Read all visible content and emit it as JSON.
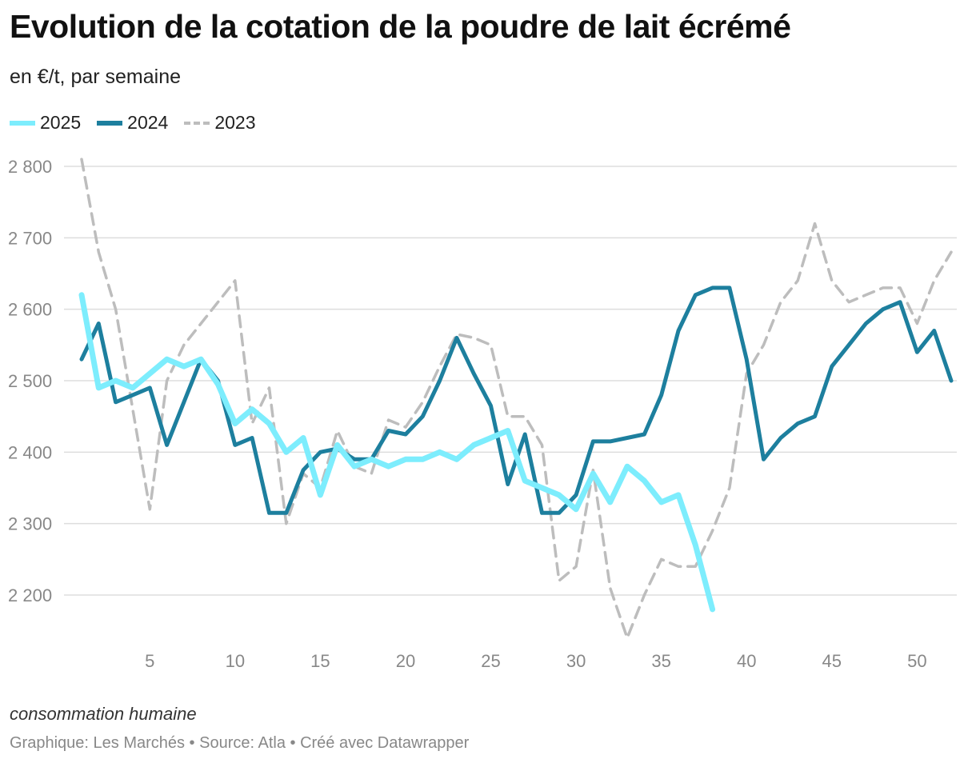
{
  "chart_data": {
    "type": "line",
    "title": "Evolution de la cotation de la poudre de lait écrémé",
    "subtitle": "en €/t, par semaine",
    "xlabel": "",
    "ylabel": "",
    "xlim": [
      1,
      52
    ],
    "ylim": [
      2140,
      2820
    ],
    "x_ticks": [
      5,
      10,
      15,
      20,
      25,
      30,
      35,
      40,
      45,
      50
    ],
    "y_ticks": [
      2200,
      2300,
      2400,
      2500,
      2600,
      2700,
      2800
    ],
    "y_tick_labels": [
      "2 200",
      "2 300",
      "2 400",
      "2 500",
      "2 600",
      "2 700",
      "2 800"
    ],
    "grid": "horizontal",
    "legend_position": "top-left",
    "series": [
      {
        "name": "2025",
        "color": "#7dedfd",
        "style": "solid",
        "x": [
          1,
          2,
          3,
          4,
          5,
          6,
          7,
          8,
          9,
          10,
          11,
          12,
          13,
          14,
          15,
          16,
          17,
          18,
          19,
          20,
          21,
          22,
          23,
          24,
          25,
          26,
          27,
          28,
          29,
          30,
          31,
          32,
          33,
          34,
          35,
          36,
          37,
          38
        ],
        "values": [
          2620,
          2490,
          2500,
          2490,
          2510,
          2530,
          2520,
          2530,
          2495,
          2440,
          2460,
          2440,
          2400,
          2420,
          2340,
          2410,
          2380,
          2390,
          2380,
          2390,
          2390,
          2400,
          2390,
          2410,
          2420,
          2430,
          2360,
          2350,
          2340,
          2320,
          2370,
          2330,
          2380,
          2360,
          2330,
          2340,
          2270,
          2180
        ]
      },
      {
        "name": "2024",
        "color": "#1d7f9e",
        "style": "solid",
        "x": [
          1,
          2,
          3,
          4,
          5,
          6,
          7,
          8,
          9,
          10,
          11,
          12,
          13,
          14,
          15,
          16,
          17,
          18,
          19,
          20,
          21,
          22,
          23,
          24,
          25,
          26,
          27,
          28,
          29,
          30,
          31,
          32,
          33,
          34,
          35,
          36,
          37,
          38,
          39,
          40,
          41,
          42,
          43,
          44,
          45,
          46,
          47,
          48,
          49,
          50,
          51,
          52
        ],
        "values": [
          2530,
          2580,
          2470,
          2480,
          2490,
          2410,
          2470,
          2530,
          2500,
          2410,
          2420,
          2315,
          2315,
          2375,
          2400,
          2405,
          2390,
          2390,
          2430,
          2425,
          2450,
          2500,
          2560,
          2510,
          2465,
          2355,
          2425,
          2315,
          2315,
          2340,
          2415,
          2415,
          2420,
          2425,
          2480,
          2570,
          2620,
          2630,
          2630,
          2530,
          2390,
          2420,
          2440,
          2450,
          2520,
          2550,
          2580,
          2600,
          2610,
          2540,
          2570,
          2500
        ]
      },
      {
        "name": "2023",
        "color": "#bdbdbd",
        "style": "dashed",
        "x": [
          1,
          2,
          3,
          4,
          5,
          6,
          7,
          8,
          9,
          10,
          11,
          12,
          13,
          14,
          15,
          16,
          17,
          18,
          19,
          20,
          21,
          22,
          23,
          24,
          25,
          26,
          27,
          28,
          29,
          30,
          31,
          32,
          33,
          34,
          35,
          36,
          37,
          38,
          39,
          40,
          41,
          42,
          43,
          44,
          45,
          46,
          47,
          48,
          49,
          50,
          51,
          52
        ],
        "values": [
          2810,
          2680,
          2600,
          2460,
          2320,
          2500,
          2550,
          2580,
          2610,
          2640,
          2440,
          2490,
          2300,
          2370,
          2350,
          2430,
          2380,
          2370,
          2445,
          2435,
          2470,
          2520,
          2565,
          2560,
          2550,
          2450,
          2450,
          2410,
          2220,
          2240,
          2375,
          2210,
          2140,
          2200,
          2250,
          2240,
          2240,
          2290,
          2350,
          2510,
          2550,
          2610,
          2640,
          2720,
          2640,
          2610,
          2620,
          2630,
          2630,
          2580,
          2640,
          2680
        ]
      }
    ]
  },
  "footer": {
    "note": "consommation humaine",
    "credits": "Graphique: Les Marchés • Source: Atla • Créé avec Datawrapper"
  }
}
